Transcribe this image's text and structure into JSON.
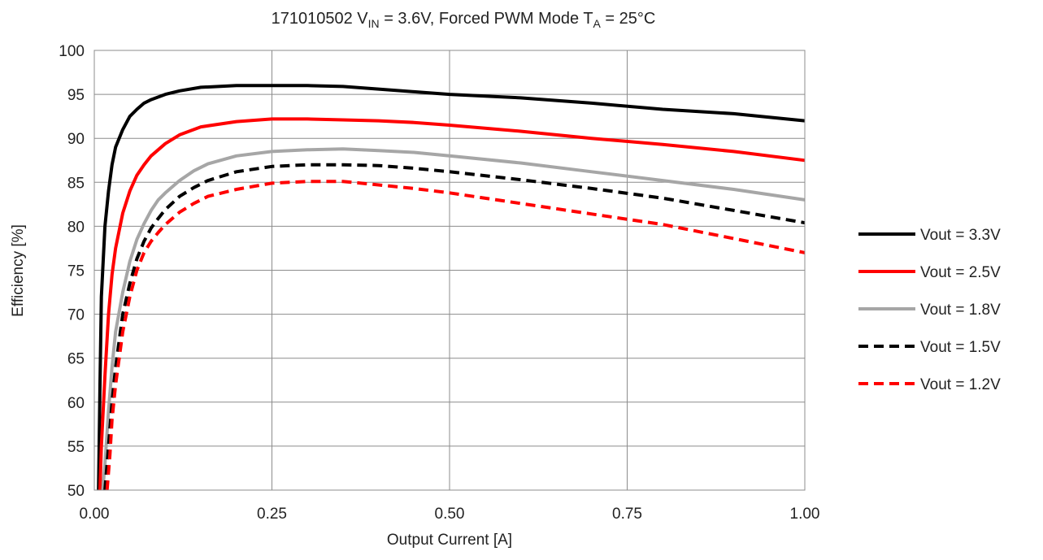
{
  "chart_data": {
    "type": "line",
    "title": {
      "prefix": "171010502  V",
      "sub1": "IN",
      "mid": " = 3.6V, Forced PWM Mode T",
      "sub2": "A",
      "suffix": " = 25°C"
    },
    "xlabel": "Output Current [A]",
    "ylabel": "Efficiency [%]",
    "xlim": [
      0,
      1
    ],
    "ylim": [
      50,
      100
    ],
    "x_ticks": [
      "0.00",
      "0.25",
      "0.50",
      "0.75",
      "1.00"
    ],
    "y_ticks": [
      "50",
      "55",
      "60",
      "65",
      "70",
      "75",
      "80",
      "85",
      "90",
      "95",
      "100"
    ],
    "grid": true,
    "legend_position": "right",
    "series": [
      {
        "name": "Vout = 3.3V",
        "color": "#000000",
        "dashed": false,
        "x": [
          0.006,
          0.008,
          0.01,
          0.015,
          0.02,
          0.025,
          0.03,
          0.04,
          0.05,
          0.06,
          0.07,
          0.08,
          0.1,
          0.12,
          0.15,
          0.2,
          0.25,
          0.3,
          0.35,
          0.4,
          0.45,
          0.5,
          0.6,
          0.7,
          0.8,
          0.9,
          1.0
        ],
        "y": [
          50,
          62,
          72,
          80,
          84,
          87,
          89,
          91,
          92.5,
          93.3,
          94,
          94.4,
          95,
          95.4,
          95.8,
          96,
          96,
          96,
          95.9,
          95.6,
          95.3,
          95,
          94.6,
          94,
          93.3,
          92.8,
          92
        ]
      },
      {
        "name": "Vout = 2.5V",
        "color": "#ff0000",
        "dashed": false,
        "x": [
          0.008,
          0.01,
          0.015,
          0.02,
          0.025,
          0.03,
          0.04,
          0.05,
          0.06,
          0.07,
          0.08,
          0.1,
          0.12,
          0.15,
          0.2,
          0.25,
          0.3,
          0.35,
          0.4,
          0.45,
          0.5,
          0.6,
          0.7,
          0.8,
          0.9,
          1.0
        ],
        "y": [
          50,
          55,
          63,
          70,
          74.5,
          77.5,
          81.5,
          84,
          85.8,
          87,
          88,
          89.4,
          90.4,
          91.3,
          91.9,
          92.2,
          92.2,
          92.1,
          92,
          91.8,
          91.5,
          90.8,
          90,
          89.3,
          88.5,
          87.5
        ]
      },
      {
        "name": "Vout = 1.8V",
        "color": "#a6a6a6",
        "dashed": false,
        "x": [
          0.012,
          0.015,
          0.02,
          0.025,
          0.03,
          0.04,
          0.05,
          0.06,
          0.07,
          0.08,
          0.09,
          0.1,
          0.12,
          0.14,
          0.16,
          0.2,
          0.25,
          0.3,
          0.35,
          0.4,
          0.45,
          0.5,
          0.6,
          0.7,
          0.8,
          0.9,
          1.0
        ],
        "y": [
          50,
          53,
          59,
          64,
          68,
          72.5,
          76,
          78.5,
          80.3,
          81.8,
          83,
          83.8,
          85.2,
          86.3,
          87.1,
          88,
          88.5,
          88.7,
          88.8,
          88.6,
          88.4,
          88,
          87.2,
          86.2,
          85.2,
          84.2,
          83
        ]
      },
      {
        "name": "Vout = 1.5V",
        "color": "#000000",
        "dashed": true,
        "x": [
          0.015,
          0.02,
          0.025,
          0.03,
          0.04,
          0.05,
          0.06,
          0.07,
          0.08,
          0.09,
          0.1,
          0.12,
          0.14,
          0.16,
          0.2,
          0.25,
          0.3,
          0.35,
          0.4,
          0.45,
          0.5,
          0.6,
          0.7,
          0.8,
          0.9,
          1.0
        ],
        "y": [
          50,
          55,
          60,
          64,
          70,
          73.5,
          76.3,
          78.3,
          79.8,
          80.9,
          81.9,
          83.4,
          84.4,
          85.2,
          86.2,
          86.8,
          87,
          87,
          86.9,
          86.6,
          86.2,
          85.3,
          84.3,
          83.2,
          81.8,
          80.4
        ]
      },
      {
        "name": "Vout = 1.2V",
        "color": "#ff0000",
        "dashed": true,
        "x": [
          0.018,
          0.022,
          0.025,
          0.03,
          0.04,
          0.05,
          0.06,
          0.07,
          0.08,
          0.09,
          0.1,
          0.12,
          0.14,
          0.16,
          0.2,
          0.25,
          0.3,
          0.35,
          0.4,
          0.45,
          0.5,
          0.6,
          0.7,
          0.8,
          0.9,
          1.0
        ],
        "y": [
          50,
          54,
          58,
          62,
          68,
          72,
          75,
          77,
          78.3,
          79.3,
          80.2,
          81.6,
          82.6,
          83.4,
          84.2,
          84.9,
          85.1,
          85.1,
          84.7,
          84.3,
          83.8,
          82.6,
          81.4,
          80.2,
          78.6,
          77
        ]
      }
    ]
  }
}
